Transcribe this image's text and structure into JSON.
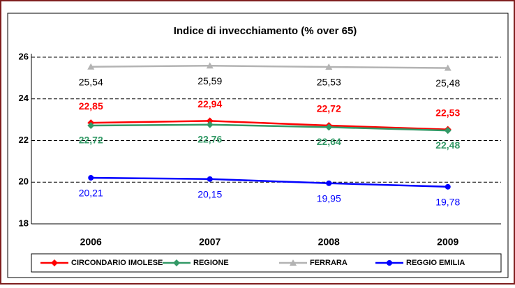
{
  "chart_data": {
    "type": "line",
    "title": "Indice di invecchiamento (% over 65)",
    "categories": [
      "2006",
      "2007",
      "2008",
      "2009"
    ],
    "series": [
      {
        "name": "CIRCONDARIO IMOLESE",
        "color": "#ff0000",
        "marker": "diamond",
        "values": [
          22.85,
          22.94,
          22.72,
          22.53
        ],
        "value_labels": [
          "22,85",
          "22,94",
          "22,72",
          "22,53"
        ]
      },
      {
        "name": "REGIONE",
        "color": "#339966",
        "marker": "diamond",
        "values": [
          22.72,
          22.76,
          22.64,
          22.48
        ],
        "value_labels": [
          "22,72",
          "22,76",
          "22,64",
          "22,48"
        ]
      },
      {
        "name": "FERRARA",
        "color": "#b3b3b3",
        "marker": "triangle",
        "values": [
          25.54,
          25.59,
          25.53,
          25.48
        ],
        "value_labels": [
          "25,54",
          "25,59",
          "25,53",
          "25,48"
        ]
      },
      {
        "name": "REGGIO EMILIA",
        "color": "#0000ff",
        "marker": "circle",
        "values": [
          20.21,
          20.15,
          19.95,
          19.78
        ],
        "value_labels": [
          "20,21",
          "20,15",
          "19,95",
          "19,78"
        ]
      }
    ],
    "ylim": [
      18,
      26
    ],
    "yticks": [
      18,
      20,
      22,
      24,
      26
    ],
    "grid": true,
    "legend": "bottom"
  }
}
